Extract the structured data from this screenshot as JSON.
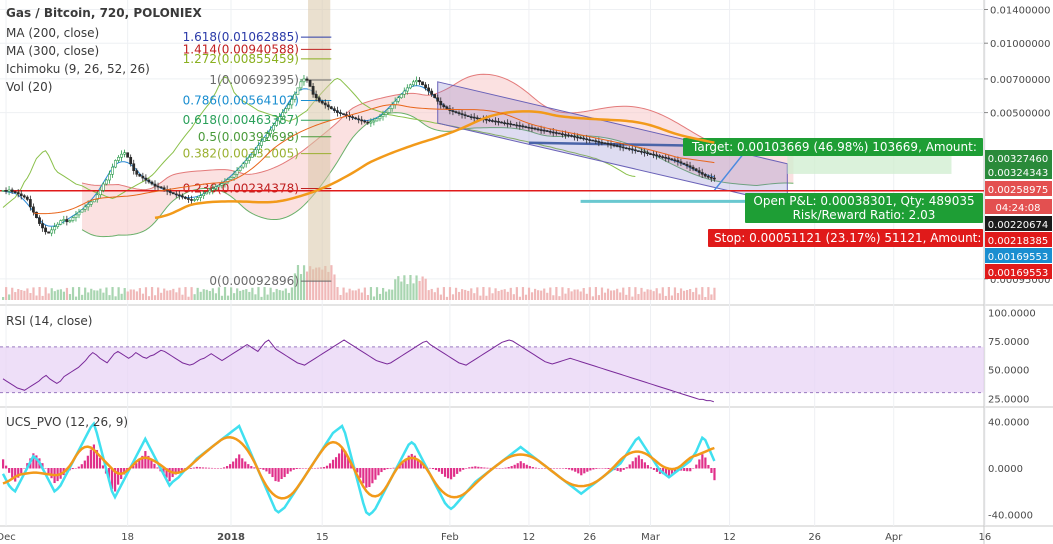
{
  "chart_data": {
    "type": "candlestick",
    "title": "Gas / Bitcoin, 720, POLONIEX",
    "main_legend": [
      "MA (200, close)",
      "MA (300, close)",
      "Ichimoku (9, 26, 52, 26)",
      "Vol (20)"
    ],
    "price_axis": {
      "scale": "log",
      "ticks": [
        "0.01400000",
        "0.01000000",
        "0.00700000",
        "0.00500000",
        "0.00095000"
      ],
      "range": [
        0.00085,
        0.0145
      ]
    },
    "price_tags": [
      {
        "label": "0.00327460",
        "value": 0.0032746,
        "color": "#2a8a3a"
      },
      {
        "label": "0.00324343",
        "value": 0.00324343,
        "color": "#2a8a3a"
      },
      {
        "label": "0.00258975",
        "value": 0.00258975,
        "color": "#e35050"
      },
      {
        "label": "04:24:08",
        "value": 0.00245,
        "color": "#e35050"
      },
      {
        "label": "0.00220674",
        "value": 0.00220674,
        "color": "#1a1a1a"
      },
      {
        "label": "0.00218385",
        "value": 0.00218385,
        "color": "#e01a1a"
      },
      {
        "label": "0.00169553",
        "value": 0.00169553,
        "color": "#1a8ed0"
      },
      {
        "label": "0.00169553",
        "value": 0.00169553,
        "color": "#e01a1a"
      }
    ],
    "fibonacci": [
      {
        "label": "1.618(0.01062885)",
        "value": 0.01062885,
        "color": "#2a3aa8"
      },
      {
        "label": "1.414(0.00940588)",
        "value": 0.00940588,
        "color": "#c02020"
      },
      {
        "label": "1.272(0.00855459)",
        "value": 0.00855459,
        "color": "#8ab020"
      },
      {
        "label": "1(0.00692395)",
        "value": 0.00692395,
        "color": "#6a6a6a"
      },
      {
        "label": "0.786(0.00564102)",
        "value": 0.00564102,
        "color": "#1a8ed0"
      },
      {
        "label": "0.618(0.00463387)",
        "value": 0.00463387,
        "color": "#2aa05a"
      },
      {
        "label": "0.5(0.00392698)",
        "value": 0.00392698,
        "color": "#4a9a3a"
      },
      {
        "label": "0.382(0.00332005)",
        "value": 0.00332005,
        "color": "#9ab030"
      },
      {
        "label": "0.236(0.00234378)",
        "value": 0.00234378,
        "color": "#c02020"
      },
      {
        "label": "0(0.00092896)",
        "value": 0.00092896,
        "color": "#6a6a6a"
      }
    ],
    "position": {
      "target_label": "Target: 0.00103669 (46.98%) 103669, Amount:",
      "pnl_label": "Open P&L: 0.00038301, Qty: 489035",
      "rr_label": "Risk/Reward Ratio: 2.03",
      "stop_label": "Stop: 0.00051121 (23.17%) 51121, Amount:"
    },
    "x_axis": {
      "ticks": [
        {
          "label": "Dec",
          "bar": 1,
          "bold": false
        },
        {
          "label": "18",
          "bar": 41,
          "bold": false
        },
        {
          "label": "2018",
          "bar": 75,
          "bold": true
        },
        {
          "label": "15",
          "bar": 105,
          "bold": false
        },
        {
          "label": "Feb",
          "bar": 147,
          "bold": false
        },
        {
          "label": "12",
          "bar": 173,
          "bold": false
        },
        {
          "label": "26",
          "bar": 193,
          "bold": false
        },
        {
          "label": "Mar",
          "bar": 213,
          "bold": false
        },
        {
          "label": "12",
          "bar": 239,
          "bold": false
        },
        {
          "label": "26",
          "bar": 267,
          "bold": false
        },
        {
          "label": "Apr",
          "bar": 293,
          "bold": false
        },
        {
          "label": "16",
          "bar": 323,
          "bold": false
        }
      ]
    },
    "closes": [
      0.0023,
      0.00228,
      0.00231,
      0.00227,
      0.00225,
      0.00222,
      0.00218,
      0.00215,
      0.0021,
      0.00195,
      0.00185,
      0.00175,
      0.00165,
      0.00158,
      0.00152,
      0.0015,
      0.00155,
      0.0016,
      0.00164,
      0.0017,
      0.00172,
      0.00168,
      0.0017,
      0.00175,
      0.0018,
      0.00185,
      0.0019,
      0.00195,
      0.002,
      0.00205,
      0.0021,
      0.0022,
      0.0023,
      0.00245,
      0.00255,
      0.0027,
      0.0029,
      0.0031,
      0.0032,
      0.0033,
      0.00335,
      0.0032,
      0.003,
      0.0028,
      0.0027,
      0.00265,
      0.0026,
      0.00255,
      0.0025,
      0.00245,
      0.0024,
      0.00238,
      0.00236,
      0.00232,
      0.00228,
      0.00225,
      0.00222,
      0.0022,
      0.00218,
      0.00215,
      0.00212,
      0.0021,
      0.00208,
      0.0021,
      0.00214,
      0.00218,
      0.00222,
      0.00226,
      0.0023,
      0.00234,
      0.00238,
      0.00242,
      0.00246,
      0.0025,
      0.00256,
      0.00262,
      0.0027,
      0.0028,
      0.0029,
      0.003,
      0.0031,
      0.0032,
      0.0033,
      0.00345,
      0.0036,
      0.00375,
      0.0039,
      0.00405,
      0.0042,
      0.0044,
      0.0046,
      0.0048,
      0.005,
      0.0052,
      0.0054,
      0.0057,
      0.006,
      0.0064,
      0.0068,
      0.007,
      0.0069,
      0.0065,
      0.006,
      0.0058,
      0.0056,
      0.0055,
      0.0054,
      0.0053,
      0.0052,
      0.0051,
      0.005,
      0.00495,
      0.0049,
      0.00485,
      0.0048,
      0.00475,
      0.0047,
      0.00465,
      0.0046,
      0.00455,
      0.0045,
      0.00455,
      0.0046,
      0.0047,
      0.0048,
      0.0049,
      0.005,
      0.0052,
      0.0054,
      0.0056,
      0.0058,
      0.006,
      0.0062,
      0.0064,
      0.0066,
      0.0068,
      0.0069,
      0.0068,
      0.0066,
      0.0064,
      0.0062,
      0.006,
      0.0058,
      0.0056,
      0.0054,
      0.0053,
      0.0052,
      0.0051,
      0.00505,
      0.005,
      0.00495,
      0.0049,
      0.00485,
      0.0048,
      0.00478,
      0.00475,
      0.00472,
      0.0047,
      0.00468,
      0.00465,
      0.00462,
      0.0046,
      0.00458,
      0.00455,
      0.00452,
      0.0045,
      0.00448,
      0.00445,
      0.00442,
      0.0044,
      0.00438,
      0.00435,
      0.00432,
      0.0043,
      0.00428,
      0.00425,
      0.00422,
      0.0042,
      0.00418,
      0.00415,
      0.00412,
      0.0041,
      0.00408,
      0.00405,
      0.00402,
      0.004,
      0.00398,
      0.00395,
      0.00392,
      0.0039,
      0.00388,
      0.00385,
      0.00382,
      0.0038,
      0.00378,
      0.00375,
      0.00372,
      0.0037,
      0.00368,
      0.00365,
      0.00362,
      0.0036,
      0.00358,
      0.00355,
      0.00352,
      0.0035,
      0.00348,
      0.00345,
      0.00342,
      0.0034,
      0.00338,
      0.00335,
      0.00332,
      0.0033,
      0.00328,
      0.00325,
      0.00322,
      0.0032,
      0.00318,
      0.00315,
      0.00312,
      0.0031,
      0.00306,
      0.00302,
      0.00298,
      0.00294,
      0.0029,
      0.00285,
      0.0028,
      0.00275,
      0.0027,
      0.00265,
      0.00262,
      0.0026,
      0.00259
    ],
    "rsi": {
      "title": "RSI (14, close)",
      "ticks": [
        "100.0000",
        "75.0000",
        "50.0000",
        "25.0000"
      ],
      "range": [
        20,
        104
      ],
      "band": [
        30,
        70
      ],
      "values": [
        42,
        40,
        38,
        36,
        34,
        33,
        32,
        34,
        36,
        38,
        40,
        43,
        45,
        42,
        40,
        38,
        40,
        44,
        46,
        48,
        50,
        52,
        55,
        58,
        62,
        65,
        63,
        60,
        58,
        56,
        60,
        64,
        66,
        64,
        62,
        60,
        62,
        65,
        63,
        61,
        60,
        62,
        63,
        65,
        67,
        66,
        64,
        62,
        60,
        58,
        56,
        55,
        54,
        55,
        57,
        59,
        60,
        62,
        64,
        62,
        60,
        58,
        60,
        62,
        64,
        66,
        68,
        70,
        72,
        70,
        68,
        66,
        70,
        74,
        76,
        72,
        68,
        66,
        64,
        62,
        60,
        58,
        56,
        55,
        54,
        56,
        58,
        60,
        62,
        64,
        66,
        68,
        70,
        72,
        74,
        76,
        74,
        72,
        70,
        68,
        66,
        64,
        62,
        60,
        58,
        57,
        56,
        55,
        56,
        58,
        60,
        62,
        64,
        66,
        68,
        70,
        72,
        74,
        75,
        72,
        70,
        68,
        66,
        64,
        62,
        60,
        58,
        56,
        55,
        54,
        56,
        58,
        60,
        62,
        64,
        66,
        68,
        70,
        72,
        74,
        75,
        76,
        75,
        73,
        71,
        69,
        67,
        65,
        63,
        61,
        59,
        57,
        56,
        55,
        56,
        57,
        58,
        59,
        60,
        59,
        58,
        57,
        56,
        55,
        54,
        53,
        52,
        51,
        50,
        49,
        48,
        47,
        46,
        45,
        44,
        43,
        42,
        41,
        40,
        39,
        38,
        37,
        36,
        35,
        34,
        33,
        32,
        31,
        30,
        29,
        28,
        27,
        26,
        25,
        24,
        24,
        23,
        23,
        22
      ]
    },
    "pvo": {
      "title": "UCS_PVO (12, 26, 9)",
      "ticks": [
        "40.0000",
        "0.0000",
        "-40.0000"
      ],
      "range": [
        -48,
        48
      ],
      "values": [
        -5,
        -10,
        -15,
        -18,
        -20,
        -15,
        -10,
        -5,
        0,
        5,
        10,
        8,
        5,
        0,
        -5,
        -10,
        -15,
        -20,
        -18,
        -15,
        -10,
        -5,
        0,
        5,
        10,
        15,
        20,
        25,
        30,
        35,
        38,
        30,
        20,
        10,
        0,
        -10,
        -20,
        -25,
        -20,
        -15,
        -10,
        -5,
        0,
        5,
        10,
        15,
        20,
        25,
        20,
        15,
        10,
        5,
        0,
        -5,
        -10,
        -15,
        -12,
        -10,
        -8,
        -5,
        -2,
        0,
        2,
        5,
        8,
        10,
        12,
        14,
        16,
        18,
        20,
        22,
        24,
        26,
        28,
        30,
        32,
        34,
        36,
        30,
        24,
        18,
        12,
        6,
        0,
        -6,
        -12,
        -18,
        -24,
        -30,
        -36,
        -38,
        -36,
        -34,
        -30,
        -26,
        -22,
        -18,
        -14,
        -10,
        -6,
        -2,
        2,
        6,
        10,
        14,
        18,
        22,
        26,
        30,
        32,
        34,
        36,
        30,
        20,
        10,
        0,
        -10,
        -20,
        -30,
        -38,
        -40,
        -38,
        -35,
        -30,
        -25,
        -20,
        -15,
        -10,
        -5,
        0,
        5,
        10,
        15,
        20,
        22,
        20,
        15,
        10,
        5,
        0,
        -5,
        -10,
        -15,
        -20,
        -25,
        -30,
        -33,
        -35,
        -33,
        -30,
        -27,
        -24,
        -21,
        -18,
        -15,
        -12,
        -10,
        -8,
        -6,
        -4,
        -2,
        0,
        2,
        4,
        6,
        8,
        10,
        12,
        14,
        16,
        18,
        16,
        14,
        12,
        10,
        8,
        6,
        4,
        2,
        0,
        -2,
        -4,
        -6,
        -8,
        -10,
        -12,
        -14,
        -16,
        -18,
        -20,
        -22,
        -20,
        -18,
        -16,
        -14,
        -12,
        -10,
        -8,
        -6,
        -4,
        -2,
        0,
        2,
        4,
        8,
        12,
        16,
        20,
        24,
        26,
        22,
        18,
        14,
        10,
        6,
        2,
        -2,
        -4,
        -6,
        -8,
        -6,
        -4,
        -2,
        0,
        2,
        4,
        6,
        10,
        14,
        20,
        26,
        24,
        18,
        12,
        6
      ]
    }
  }
}
